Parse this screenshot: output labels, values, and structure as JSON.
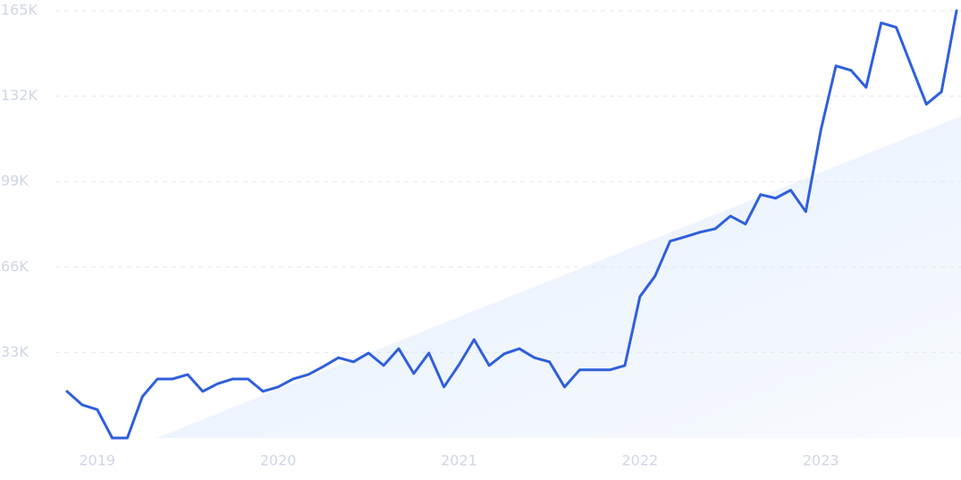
{
  "chart_data": {
    "type": "line",
    "categories": [
      null,
      null,
      "2019",
      null,
      null,
      null,
      null,
      null,
      null,
      null,
      null,
      null,
      null,
      null,
      "2020",
      null,
      null,
      null,
      null,
      null,
      null,
      null,
      null,
      null,
      null,
      null,
      "2021",
      null,
      null,
      null,
      null,
      null,
      null,
      null,
      null,
      null,
      null,
      null,
      "2022",
      null,
      null,
      null,
      null,
      null,
      null,
      null,
      null,
      null,
      null,
      null,
      "2023",
      null,
      null,
      null,
      null,
      null,
      null,
      null,
      null,
      null
    ],
    "series": [
      {
        "color": "#2f5fdc",
        "values": [
          18000,
          12800,
          11000,
          0,
          0,
          16000,
          22800,
          22800,
          24500,
          18000,
          21000,
          22800,
          22800,
          18000,
          19700,
          22800,
          24500,
          27600,
          31000,
          29400,
          32800,
          28000,
          34500,
          24900,
          32800,
          19700,
          28300,
          38000,
          28000,
          32500,
          34500,
          31000,
          29400,
          19700,
          26300,
          26300,
          26300,
          28000,
          54600,
          62500,
          76000,
          77700,
          79500,
          80800,
          85700,
          82600,
          94000,
          92600,
          95700,
          87400,
          118900,
          143700,
          142000,
          135400,
          160300,
          158600,
          143700,
          128900,
          133700,
          165000
        ]
      }
    ],
    "ylim": [
      0,
      165000
    ],
    "yticks": [
      {
        "value": 33000,
        "label": "33K"
      },
      {
        "value": 66000,
        "label": "66K"
      },
      {
        "value": 99000,
        "label": "99K"
      },
      {
        "value": 132000,
        "label": "132K"
      },
      {
        "value": 165000,
        "label": "165K"
      }
    ],
    "grid": true
  }
}
